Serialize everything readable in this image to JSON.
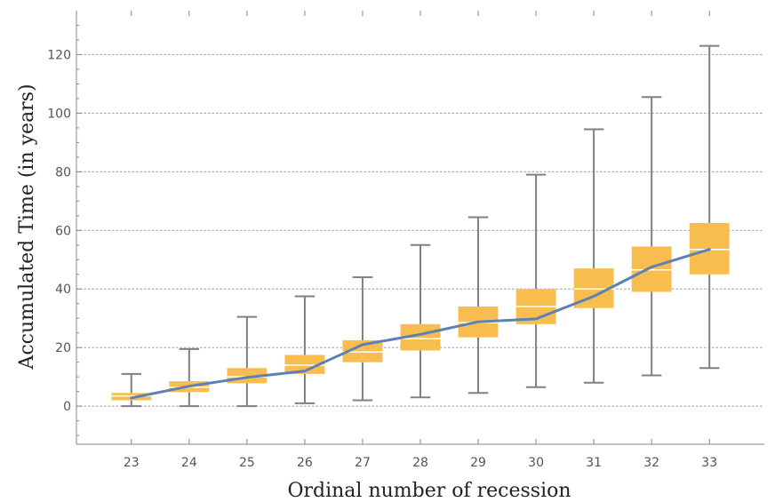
{
  "chart_data": {
    "type": "box",
    "xlabel": "Ordinal number of recession",
    "ylabel": "Accumulated Time (in years)",
    "categories": [
      "23",
      "24",
      "25",
      "26",
      "27",
      "28",
      "29",
      "30",
      "31",
      "32",
      "33"
    ],
    "x": [
      23,
      24,
      25,
      26,
      27,
      28,
      29,
      30,
      31,
      32,
      33
    ],
    "boxes": [
      {
        "x": 23,
        "min": 0,
        "q1": 2,
        "median": 3.5,
        "q3": 4.5,
        "max": 11
      },
      {
        "x": 24,
        "min": 0,
        "q1": 4.8,
        "median": 6.5,
        "q3": 8.5,
        "max": 19.5
      },
      {
        "x": 25,
        "min": 0,
        "q1": 7.8,
        "median": 10,
        "q3": 13,
        "max": 30.5
      },
      {
        "x": 26,
        "min": 1,
        "q1": 11,
        "median": 14,
        "q3": 17.5,
        "max": 37.5
      },
      {
        "x": 27,
        "min": 2,
        "q1": 15,
        "median": 18.5,
        "q3": 22.5,
        "max": 44
      },
      {
        "x": 28,
        "min": 3,
        "q1": 19,
        "median": 23,
        "q3": 28,
        "max": 55
      },
      {
        "x": 29,
        "min": 4.5,
        "q1": 23.5,
        "median": 28.5,
        "q3": 34,
        "max": 64.5
      },
      {
        "x": 30,
        "min": 6.5,
        "q1": 28,
        "median": 34,
        "q3": 40,
        "max": 79
      },
      {
        "x": 31,
        "min": 8,
        "q1": 33.5,
        "median": 40,
        "q3": 47,
        "max": 94.5
      },
      {
        "x": 32,
        "min": 10.5,
        "q1": 39,
        "median": 46.5,
        "q3": 54.5,
        "max": 105.5
      },
      {
        "x": 33,
        "min": 13,
        "q1": 45,
        "median": 53.5,
        "q3": 62.5,
        "max": 123
      }
    ],
    "line_series": [
      {
        "x": 23,
        "y": 2.8
      },
      {
        "x": 24,
        "y": 6.8
      },
      {
        "x": 25,
        "y": 9.8
      },
      {
        "x": 26,
        "y": 12
      },
      {
        "x": 27,
        "y": 21
      },
      {
        "x": 28,
        "y": 24.5
      },
      {
        "x": 29,
        "y": 28.8
      },
      {
        "x": 30,
        "y": 29.8
      },
      {
        "x": 31,
        "y": 37.5
      },
      {
        "x": 32,
        "y": 47.5
      },
      {
        "x": 33,
        "y": 53.5
      }
    ],
    "ylim": [
      -13,
      135
    ],
    "xlim": [
      22.05,
      33.95
    ],
    "y_ticks": [
      0,
      20,
      40,
      60,
      80,
      100,
      120
    ],
    "grid": "horizontal dotted at major y ticks",
    "colors": {
      "box_fill": "#f8bd4f",
      "median_line": "#ffffff",
      "whisker": "#808080",
      "line": "#5e81b5",
      "axis": "#888888",
      "grid": "#aaaaaa"
    }
  }
}
